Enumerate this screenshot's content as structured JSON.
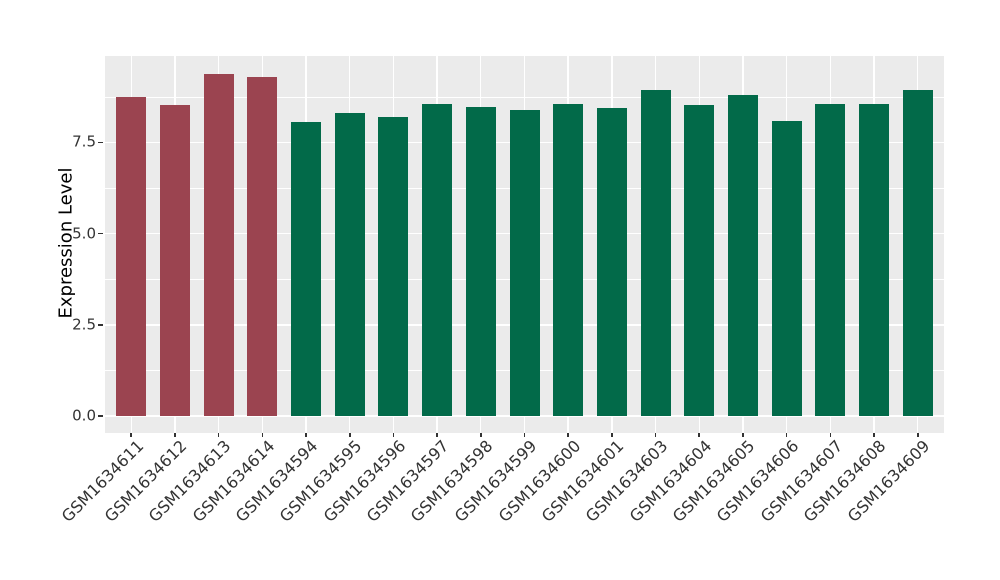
{
  "chart_data": {
    "type": "bar",
    "title": "",
    "xlabel": "",
    "ylabel": "Expression Level",
    "categories": [
      "GSM1634611",
      "GSM1634612",
      "GSM1634613",
      "GSM1634614",
      "GSM1634594",
      "GSM1634595",
      "GSM1634596",
      "GSM1634597",
      "GSM1634598",
      "GSM1634599",
      "GSM1634600",
      "GSM1634601",
      "GSM1634603",
      "GSM1634604",
      "GSM1634605",
      "GSM1634606",
      "GSM1634607",
      "GSM1634608",
      "GSM1634609"
    ],
    "values": [
      8.74,
      8.52,
      9.37,
      9.29,
      8.07,
      8.3,
      8.21,
      8.55,
      8.46,
      8.4,
      8.55,
      8.44,
      8.93,
      8.53,
      8.8,
      8.09,
      8.55,
      8.55,
      8.94
    ],
    "groups": [
      "highlight",
      "highlight",
      "highlight",
      "highlight",
      "normal",
      "normal",
      "normal",
      "normal",
      "normal",
      "normal",
      "normal",
      "normal",
      "normal",
      "normal",
      "normal",
      "normal",
      "normal",
      "normal",
      "normal"
    ],
    "group_colors": {
      "highlight": "#9B4450",
      "normal": "#026A49"
    },
    "y_ticks": [
      0.0,
      2.5,
      5.0,
      7.5
    ],
    "y_tick_labels": [
      "0.0",
      "2.5",
      "5.0",
      "7.5"
    ],
    "y_minor_ticks": [
      1.25,
      3.75,
      6.25,
      8.75
    ],
    "ylim": [
      -0.47,
      9.87
    ],
    "grid": true,
    "legend": "none",
    "panel_bg": "#EBEBEB",
    "grid_color": "#FFFFFF",
    "tick_color": "#333333",
    "axis_text_color": "#333333",
    "axis_title_color": "#000000"
  }
}
